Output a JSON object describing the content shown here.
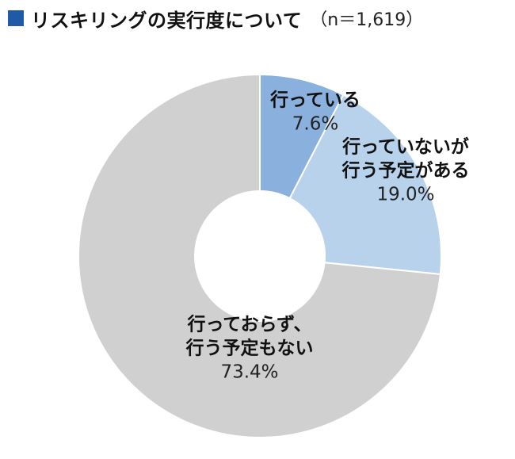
{
  "title": {
    "main": "リスキリングの実行度について",
    "sample_size": "（n＝1,619）"
  },
  "colors": {
    "title_square": "#1f5aa6",
    "slice_doing": "#8ab0dd",
    "slice_planning": "#b9d2ec",
    "slice_not": "#d0d0d0",
    "slice_border": "#ffffff"
  },
  "chart_data": {
    "type": "pie",
    "subtype": "donut",
    "unit": "%",
    "slices": [
      {
        "label_lines": [
          "行っている"
        ],
        "value": 7.6,
        "value_label": "7.6%",
        "color": "#8ab0dd"
      },
      {
        "label_lines": [
          "行っていないが",
          "行う予定がある"
        ],
        "value": 19.0,
        "value_label": "19.0%",
        "color": "#b9d2ec"
      },
      {
        "label_lines": [
          "行っておらず、",
          "行う予定もない"
        ],
        "value": 73.4,
        "value_label": "73.4%",
        "color": "#d0d0d0"
      }
    ],
    "start_angle": "12 o'clock",
    "direction": "clockwise",
    "legend": "none",
    "labels": "inside slices"
  }
}
